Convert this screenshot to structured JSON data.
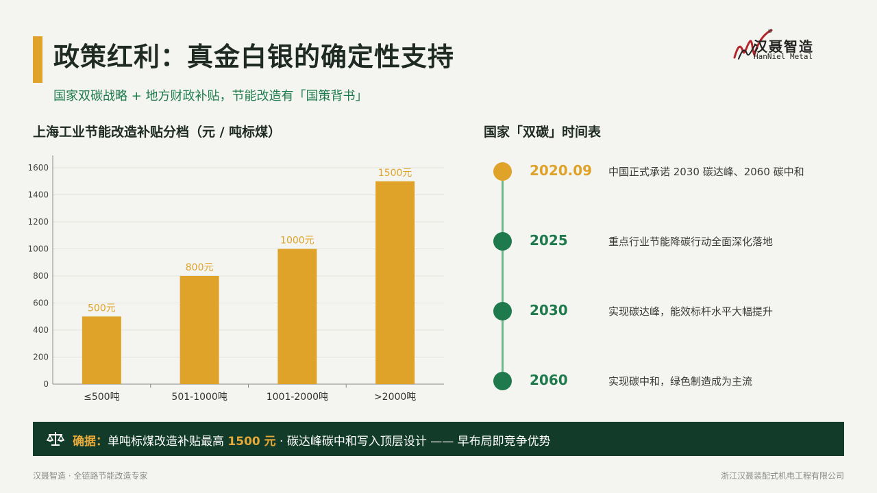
{
  "header": {
    "title": "政策红利：真金白银的确定性支持",
    "subtitle": "国家双碳战略 + 地方财政补贴，节能改造有「国策背书」"
  },
  "logo": {
    "name": "汉聂智造",
    "sub": "HanNiel Metal",
    "registered": "®"
  },
  "chart_section": {
    "title": "上海工业节能改造补贴分档（元 / 吨标煤）"
  },
  "chart_data": {
    "type": "bar",
    "categories": [
      "≤500吨",
      "501-1000吨",
      "1001-2000吨",
      ">2000吨"
    ],
    "values": [
      500,
      800,
      1000,
      1500
    ],
    "data_labels": [
      "500元",
      "800元",
      "1000元",
      "1500元"
    ],
    "yticks": [
      "0",
      "200",
      "400",
      "600",
      "800",
      "1000",
      "1200",
      "1400",
      "1600"
    ],
    "ylim": [
      0,
      1600
    ],
    "grid": true,
    "bar_color": "#e0a32a",
    "title": "",
    "xlabel": "",
    "ylabel": ""
  },
  "timeline_section": {
    "title": "国家「双碳」时间表"
  },
  "timeline": [
    {
      "year": "2020.09",
      "desc": "中国正式承诺 2030 碳达峰、2060 碳中和"
    },
    {
      "year": "2025",
      "desc": "重点行业节能降碳行动全面深化落地"
    },
    {
      "year": "2030",
      "desc": "实现碳达峰，能效标杆水平大幅提升"
    },
    {
      "year": "2060",
      "desc": "实现碳中和，绿色制造成为主流"
    }
  ],
  "banner": {
    "icon": "balance-scale-icon",
    "label": "确据：",
    "text_before": "单吨标煤改造补贴最高 ",
    "highlight": "1500 元",
    "text_after": " · 碳达峰碳中和写入顶层设计 —— 早布局即竞争优势"
  },
  "footer": {
    "left": "汉聂智造 · 全链路节能改造专家",
    "right": "浙江汉聂装配式机电工程有限公司"
  },
  "colors": {
    "accent": "#e0a32a",
    "green": "#1e7a4d",
    "banner_bg": "#123b2a"
  }
}
